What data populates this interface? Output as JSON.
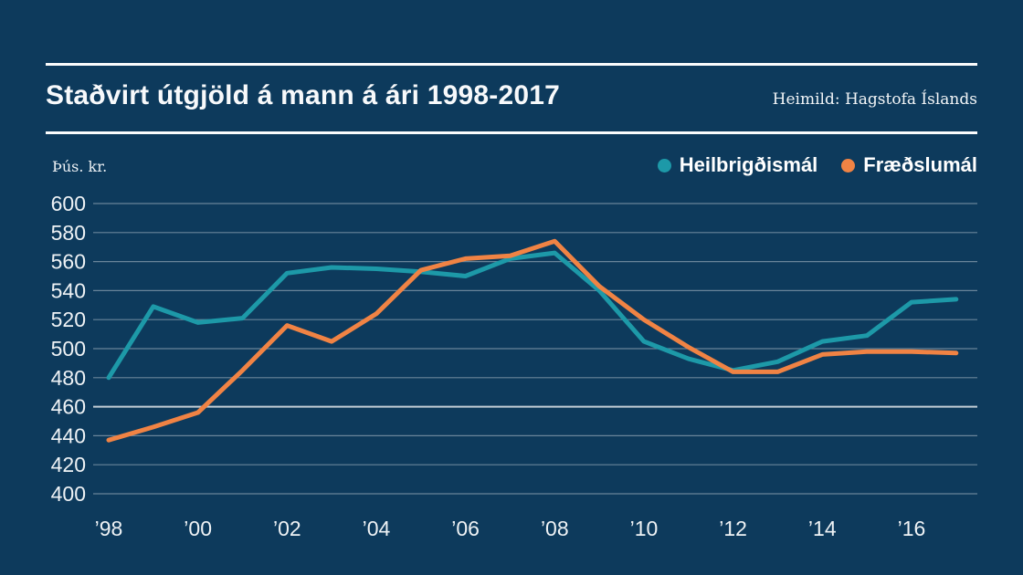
{
  "header": {
    "title": "Staðvirt útgjöld á mann á ári 1998-2017",
    "source": "Heimild: Hagstofa Íslands"
  },
  "colors": {
    "background": "#0d3a5c",
    "text": "#f4f7f9",
    "series_teal": "#1d99a8",
    "series_orange": "#f08344",
    "gridline": "rgba(255,255,255,0.38)",
    "gridline_emphasis": "rgba(255,255,255,0.75)"
  },
  "chart_data": {
    "type": "line",
    "title": "Staðvirt útgjöld á mann á ári 1998-2017",
    "unit_label": "Þús. kr.",
    "ylabel": "Þús. kr.",
    "xlabel": "",
    "ylim": [
      400,
      600
    ],
    "y_ticks": [
      400,
      420,
      440,
      460,
      480,
      500,
      520,
      540,
      560,
      580,
      600
    ],
    "emphasized_gridline": 460,
    "grid": true,
    "legend_position": "top-right",
    "x": [
      1998,
      1999,
      2000,
      2001,
      2002,
      2003,
      2004,
      2005,
      2006,
      2007,
      2008,
      2009,
      2010,
      2011,
      2012,
      2013,
      2014,
      2015,
      2016,
      2017
    ],
    "x_ticks": [
      {
        "year": 1998,
        "label": "’98"
      },
      {
        "year": 2000,
        "label": "’00"
      },
      {
        "year": 2002,
        "label": "’02"
      },
      {
        "year": 2004,
        "label": "’04"
      },
      {
        "year": 2006,
        "label": "’06"
      },
      {
        "year": 2008,
        "label": "’08"
      },
      {
        "year": 2010,
        "label": "’10"
      },
      {
        "year": 2012,
        "label": "’12"
      },
      {
        "year": 2014,
        "label": "’14"
      },
      {
        "year": 2016,
        "label": "’16"
      }
    ],
    "series": [
      {
        "id": "heilbrigdismal",
        "name": "Heilbrigðismál",
        "color": "#1d99a8",
        "values": [
          480,
          529,
          518,
          521,
          552,
          556,
          555,
          553,
          550,
          562,
          566,
          540,
          505,
          493,
          485,
          491,
          505,
          509,
          532,
          534
        ]
      },
      {
        "id": "fraedslumal",
        "name": "Fræðslumál",
        "color": "#f08344",
        "values": [
          437,
          446,
          456,
          485,
          516,
          505,
          524,
          554,
          562,
          564,
          574,
          543,
          520,
          501,
          484,
          484,
          496,
          498,
          498,
          497
        ]
      }
    ]
  },
  "legend": {
    "items": [
      {
        "label": "Heilbrigðismál",
        "color": "#1d99a8"
      },
      {
        "label": "Fræðslumál",
        "color": "#f08344"
      }
    ]
  }
}
